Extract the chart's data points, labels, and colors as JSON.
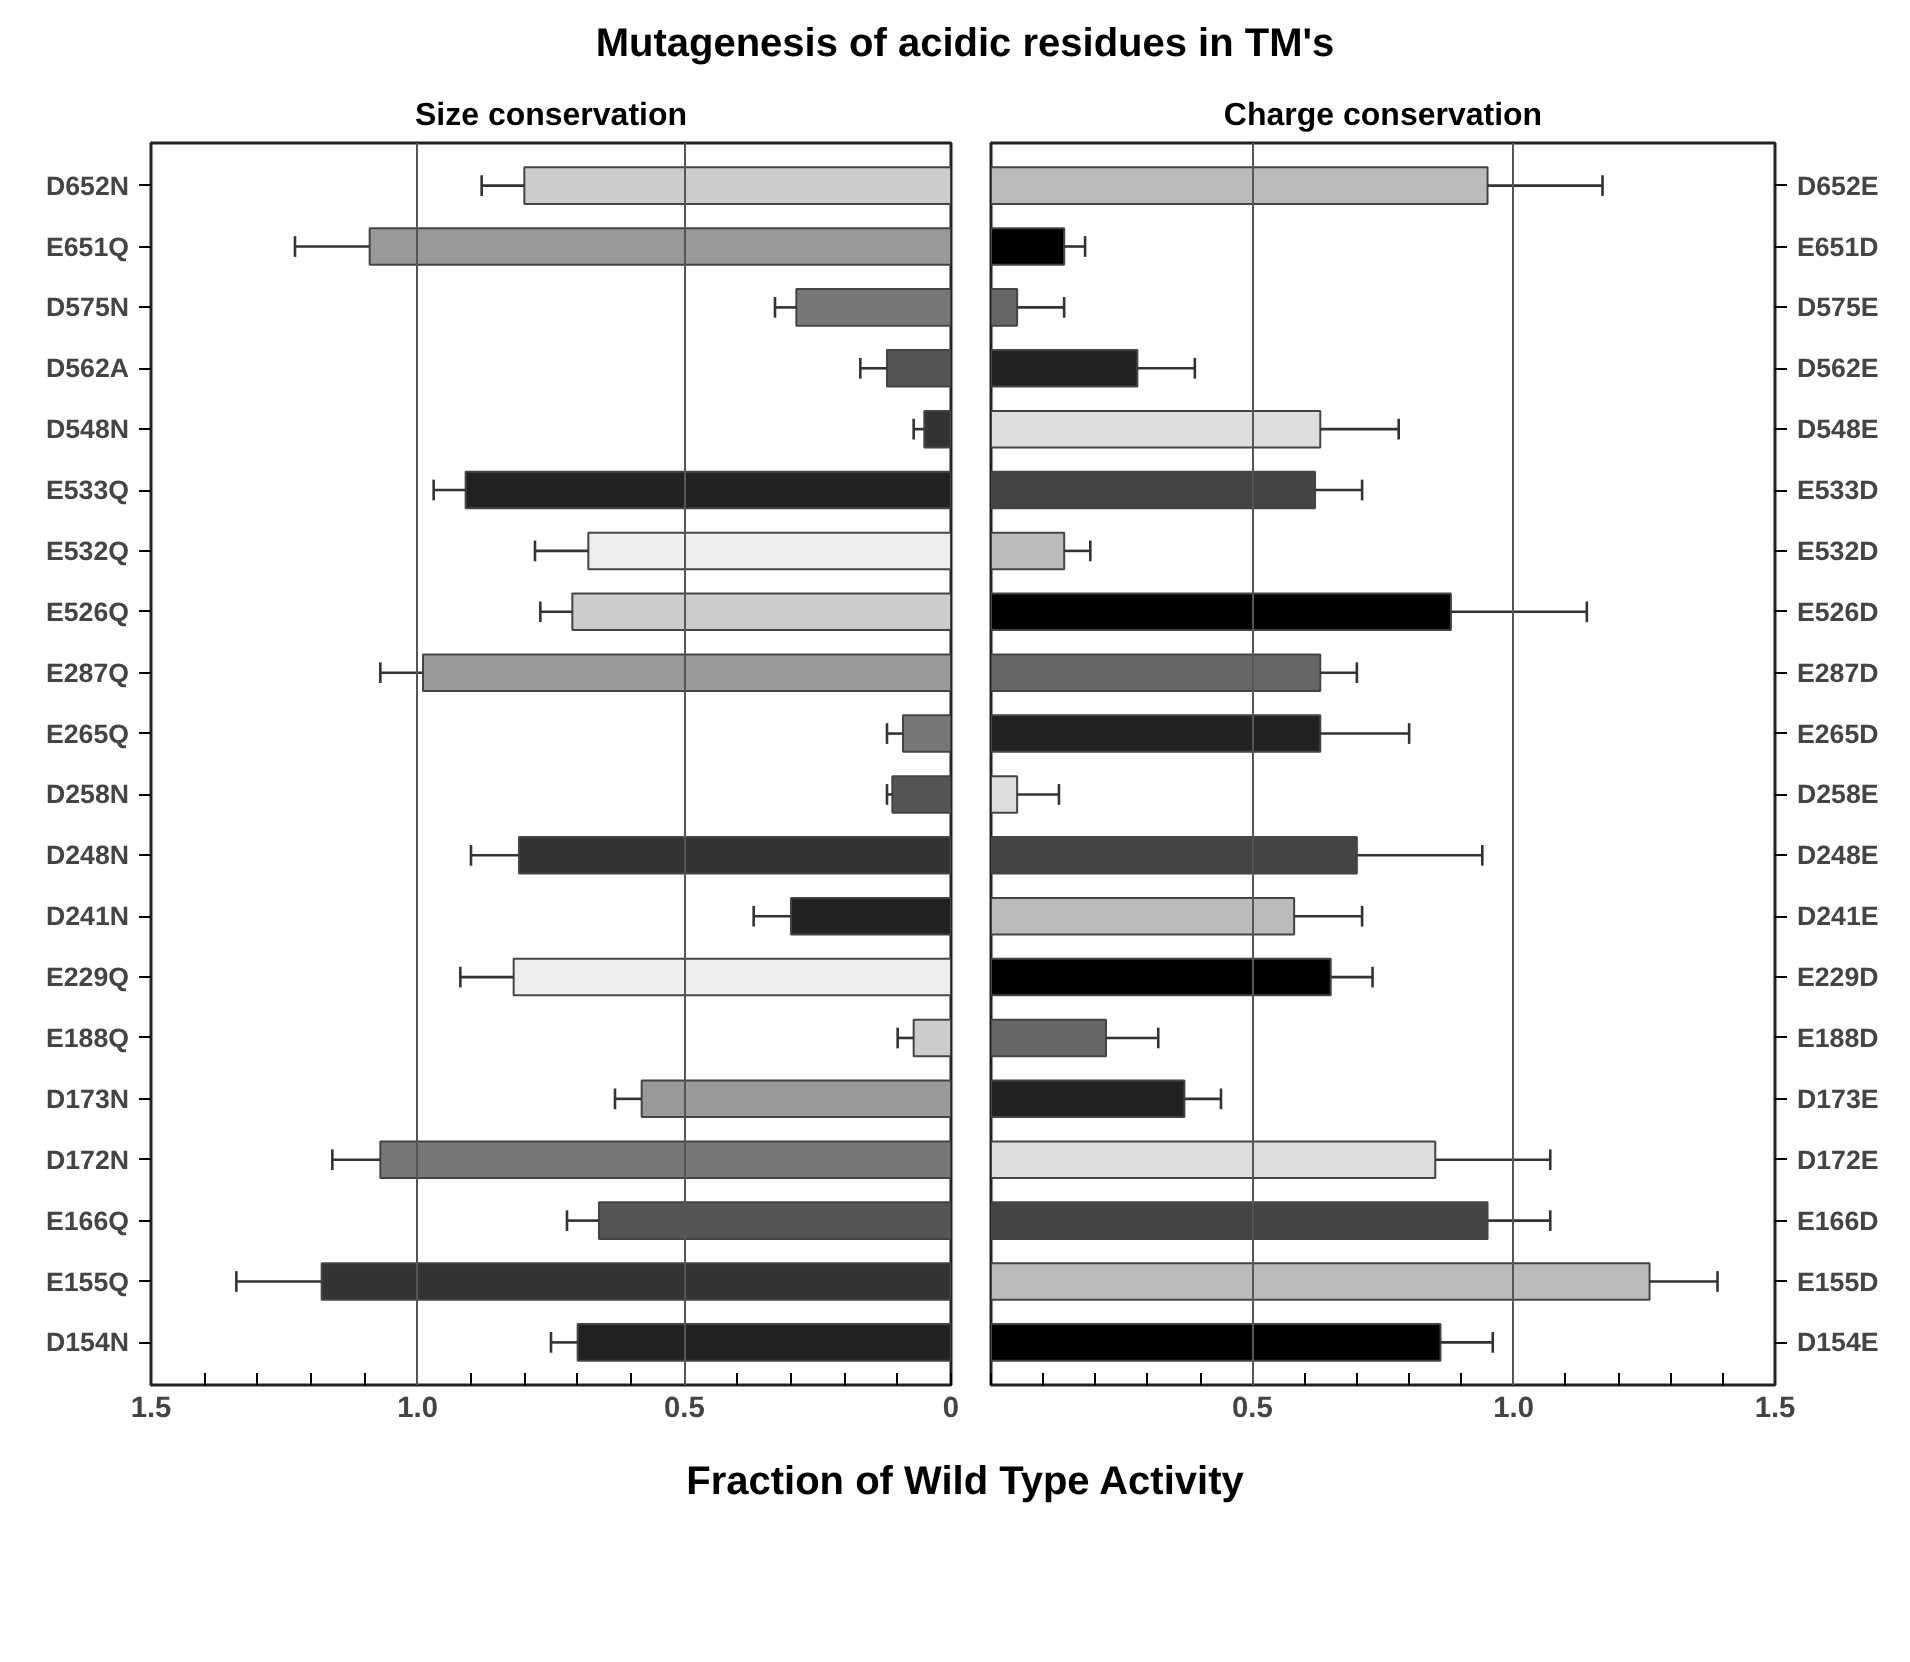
{
  "chart_data": [
    {
      "type": "bar",
      "orientation": "horizontal",
      "title": "Mutagenesis of acidic residues in TM's",
      "subtitle": "Size conservation",
      "xlabel": "Fraction of Wild Type Activity",
      "categories": [
        "D652N",
        "E651Q",
        "D575N",
        "D562A",
        "D548N",
        "E533Q",
        "E532Q",
        "E526Q",
        "E287Q",
        "E265Q",
        "D258N",
        "D248N",
        "D241N",
        "E229Q",
        "E188Q",
        "D173N",
        "D172N",
        "E166Q",
        "E155Q",
        "D154N"
      ],
      "values": [
        0.8,
        1.09,
        0.29,
        0.12,
        0.05,
        0.91,
        0.68,
        0.71,
        0.99,
        0.09,
        0.11,
        0.81,
        0.3,
        0.82,
        0.07,
        0.58,
        1.07,
        0.66,
        1.18,
        0.7
      ],
      "errors": [
        0.08,
        0.14,
        0.04,
        0.05,
        0.02,
        0.06,
        0.1,
        0.06,
        0.08,
        0.03,
        0.01,
        0.09,
        0.07,
        0.1,
        0.03,
        0.05,
        0.09,
        0.06,
        0.16,
        0.05
      ],
      "colors": [
        "#cccccc",
        "#999999",
        "#777777",
        "#555555",
        "#333333",
        "#222222",
        "#eeeeee",
        "#cccccc",
        "#999999",
        "#777777",
        "#555555",
        "#333333",
        "#222222",
        "#eeeeee",
        "#cccccc",
        "#999999",
        "#777777",
        "#555555",
        "#333333",
        "#222222"
      ],
      "xlim": [
        1.5,
        0
      ],
      "xticks": [
        {
          "value": 1.5,
          "label": "1.5"
        },
        {
          "value": 1.4,
          "label": null
        },
        {
          "value": 1.3,
          "label": null
        },
        {
          "value": 1.2,
          "label": null
        },
        {
          "value": 1.1,
          "label": null
        },
        {
          "value": 1.0,
          "label": "1.0"
        },
        {
          "value": 0.9,
          "label": null
        },
        {
          "value": 0.8,
          "label": null
        },
        {
          "value": 0.7,
          "label": null
        },
        {
          "value": 0.6,
          "label": null
        },
        {
          "value": 0.5,
          "label": "0.5"
        },
        {
          "value": 0.4,
          "label": null
        },
        {
          "value": 0.3,
          "label": null
        },
        {
          "value": 0.2,
          "label": null
        },
        {
          "value": 0.1,
          "label": null
        },
        {
          "value": 0,
          "label": "0"
        }
      ],
      "grid": "x"
    },
    {
      "type": "bar",
      "orientation": "horizontal",
      "subtitle": "Charge conservation",
      "categories": [
        "D652E",
        "E651D",
        "D575E",
        "D562E",
        "D548E",
        "E533D",
        "E532D",
        "E526D",
        "E287D",
        "E265D",
        "D258E",
        "D248E",
        "D241E",
        "E229D",
        "E188D",
        "D173E",
        "D172E",
        "E166D",
        "E155D",
        "D154E"
      ],
      "values": [
        0.95,
        0.14,
        0.05,
        0.28,
        0.63,
        0.62,
        0.14,
        0.88,
        0.63,
        0.63,
        0.05,
        0.7,
        0.58,
        0.65,
        0.22,
        0.37,
        0.85,
        0.95,
        1.26,
        0.86
      ],
      "errors": [
        0.22,
        0.04,
        0.09,
        0.11,
        0.15,
        0.09,
        0.05,
        0.26,
        0.07,
        0.17,
        0.08,
        0.24,
        0.13,
        0.08,
        0.1,
        0.07,
        0.22,
        0.12,
        0.13,
        0.1
      ],
      "colors": [
        "#bbbbbb",
        "#000000",
        "#666666",
        "#222222",
        "#dddddd",
        "#444444",
        "#bbbbbb",
        "#000000",
        "#666666",
        "#222222",
        "#dddddd",
        "#444444",
        "#bbbbbb",
        "#000000",
        "#666666",
        "#222222",
        "#dddddd",
        "#444444",
        "#bbbbbb",
        "#000000"
      ],
      "xlim": [
        0,
        1.5
      ],
      "xticks": [
        {
          "value": 0,
          "label": null
        },
        {
          "value": 0.1,
          "label": null
        },
        {
          "value": 0.2,
          "label": null
        },
        {
          "value": 0.3,
          "label": null
        },
        {
          "value": 0.4,
          "label": null
        },
        {
          "value": 0.5,
          "label": "0.5"
        },
        {
          "value": 0.6,
          "label": null
        },
        {
          "value": 0.7,
          "label": null
        },
        {
          "value": 0.8,
          "label": null
        },
        {
          "value": 0.9,
          "label": null
        },
        {
          "value": 1.0,
          "label": "1.0"
        },
        {
          "value": 1.1,
          "label": null
        },
        {
          "value": 1.2,
          "label": null
        },
        {
          "value": 1.3,
          "label": null
        },
        {
          "value": 1.4,
          "label": null
        },
        {
          "value": 1.5,
          "label": "1.5"
        }
      ],
      "grid": "x"
    }
  ]
}
